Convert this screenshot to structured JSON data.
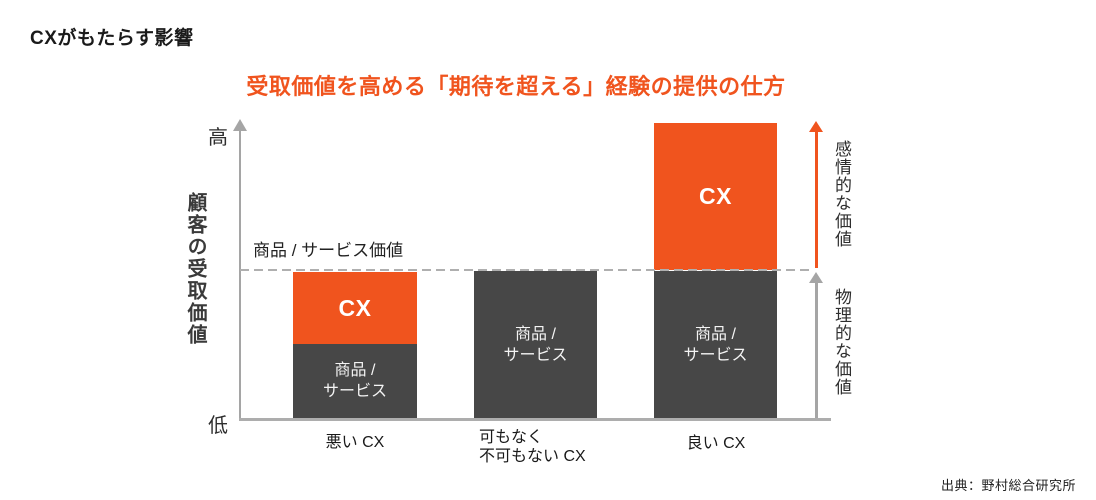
{
  "page": {
    "title": "CXがもたらす影響",
    "subtitle": "受取価値を高める「期待を超える」経験の提供の仕方",
    "source": "出典：野村総合研究所"
  },
  "colors": {
    "accent_orange": "#f0541e",
    "bar_dark_gray": "#474747",
    "axis_gray": "#a5a5a5",
    "dash_gray": "#afafaf"
  },
  "axis": {
    "label": "顧客の受取価値",
    "high": "高",
    "low": "低"
  },
  "reference_line": {
    "label": "商品 / サービス価値"
  },
  "bars": [
    {
      "category": "悪い CX",
      "cx_label": "CX",
      "product_label": "商品 /\nサービス"
    },
    {
      "category": "可もなく\n不可もない CX",
      "product_label": "商品 /\nサービス"
    },
    {
      "category": "良い CX",
      "cx_label": "CX",
      "product_label": "商品 /\nサービス"
    }
  ],
  "right_annotations": {
    "emotional": "感情的な価値",
    "physical": "物理的な価値"
  },
  "chart_data": {
    "type": "bar",
    "stacked": true,
    "title": "受取価値を高める「期待を超える」経験の提供の仕方",
    "categories": [
      "悪い CX",
      "可もなく不可もない CX",
      "良い CX"
    ],
    "series": [
      {
        "name": "商品 / サービス",
        "color": "#474747",
        "values": [
          0.5,
          1.0,
          1.0
        ]
      },
      {
        "name": "CX",
        "color": "#f0541e",
        "values": [
          0.5,
          0.0,
          1.0
        ]
      }
    ],
    "ylabel": "顧客の受取価値",
    "y_range_labels": [
      "低",
      "高"
    ],
    "ylim": [
      0,
      2
    ],
    "reference_line": {
      "label": "商品 / サービス価値",
      "value": 1.0,
      "style": "dashed"
    },
    "annotations": [
      {
        "label": "感情的な価値",
        "direction": "up",
        "color": "#f0541e",
        "region": "above-reference-line"
      },
      {
        "label": "物理的な価値",
        "direction": "up",
        "color": "#a5a5a5",
        "region": "below-reference-line"
      }
    ],
    "legend": "none",
    "grid": false
  }
}
